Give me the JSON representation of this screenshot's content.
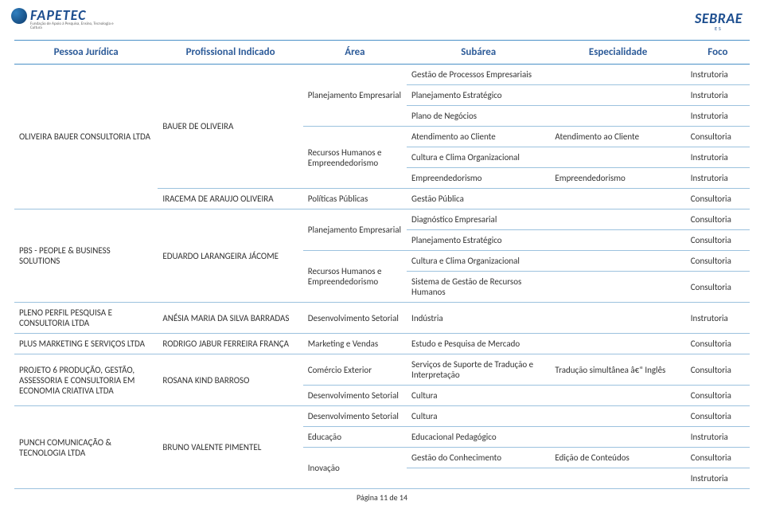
{
  "logos": {
    "left": {
      "name": "FAPETEC",
      "tagline": "Fundação de Apoio à Pesquisa, Ensino, Tecnologia e Cultura"
    },
    "right": {
      "name": "SEBRAE",
      "sub": "ES"
    }
  },
  "headers": [
    "Pessoa Jurídica",
    "Profissional Indicado",
    "Área",
    "Subárea",
    "Especialidade",
    "Foco"
  ],
  "rows": [
    {
      "c1": "OLIVEIRA BAUER CONSULTORIA LTDA",
      "c1rs": 1,
      "c2": "BAUER DE OLIVEIRA",
      "c2rs": 1,
      "c3": "Planejamento Empresarial",
      "c4": "Gestão de Processos Empresariais",
      "c5": "",
      "c6": "Instrutoria"
    },
    {
      "c4": "Planejamento Estratégico",
      "c5": "",
      "c6": "Instrutoria"
    },
    {
      "c4": "Plano de Negócios",
      "c5": "",
      "c6": "Instrutoria"
    },
    {
      "c3": "Recursos Humanos e Empreendedorismo",
      "c4": "Atendimento ao Cliente",
      "c5": "Atendimento ao Cliente",
      "c6": "Consultoria"
    },
    {
      "c4": "Cultura e Clima Organizacional",
      "c5": "",
      "c6": "Instrutoria"
    },
    {
      "c4": "Empreendedorismo",
      "c5": "Empreendedorismo",
      "c6": "Instrutoria"
    },
    {
      "c2": "IRACEMA DE ARAUJO OLIVEIRA",
      "c3": "Políticas Públicas",
      "c4": "Gestão Pública",
      "c5": "",
      "c6": "Consultoria"
    },
    {
      "c1": "PBS - PEOPLE & BUSINESS SOLUTIONS",
      "c1rs": 1,
      "c2": "EDUARDO LARANGEIRA JÁCOME",
      "c2rs": 1,
      "c3": "Planejamento Empresarial",
      "c4": "Diagnóstico Empresarial",
      "c5": "",
      "c6": "Consultoria"
    },
    {
      "c4": "Planejamento Estratégico",
      "c5": "",
      "c6": "Consultoria"
    },
    {
      "c3": "Recursos Humanos e Empreendedorismo",
      "c4": "Cultura e Clima Organizacional",
      "c5": "",
      "c6": "Consultoria"
    },
    {
      "c4": "Sistema de Gestão de Recursos Humanos",
      "c5": "",
      "c6": "Consultoria"
    },
    {
      "c1": "PLENO PERFIL PESQUISA E CONSULTORIA LTDA",
      "c2": "ANÉSIA MARIA DA SILVA BARRADAS",
      "c3": "Desenvolvimento Setorial",
      "c4": "Indústria",
      "c5": "",
      "c6": "Instrutoria"
    },
    {
      "c1": "PLUS MARKETING E SERVIÇOS LTDA",
      "c2": "RODRIGO JABUR FERREIRA FRANÇA",
      "c3": "Marketing e Vendas",
      "c4": "Estudo e Pesquisa de Mercado",
      "c5": "",
      "c6": "Consultoria"
    },
    {
      "c1": "PROJETO 6 PRODUÇÃO, GESTÃO, ASSESSORIA E CONSULTORIA EM ECONOMIA CRIATIVA LTDA",
      "c1rs": 1,
      "c2": "ROSANA KIND BARROSO",
      "c2rs": 1,
      "c3": "Comércio Exterior",
      "c4": "Serviços de Suporte de Tradução e Interpretação",
      "c5": "Tradução simultânea â€“ Inglês",
      "c6": "Consultoria"
    },
    {
      "c3": "Desenvolvimento Setorial",
      "c4": "Cultura",
      "c5": "",
      "c6": "Consultoria"
    },
    {
      "c1": "PUNCH COMUNICAÇÃO & TECNOLOGIA LTDA",
      "c1rs": 1,
      "c2": "BRUNO VALENTE PIMENTEL",
      "c2rs": 1,
      "c3": "Desenvolvimento Setorial",
      "c4": "Cultura",
      "c5": "",
      "c6": "Consultoria"
    },
    {
      "c3": "Educação",
      "c4": "Educacional Pedagógico",
      "c5": "",
      "c6": "Instrutoria"
    },
    {
      "c3": "Inovação",
      "c4": "Gestão do Conhecimento",
      "c5": "Edição de Conteúdos",
      "c6": "Consultoria"
    },
    {
      "c4": "",
      "c5": "",
      "c6": "Instrutoria"
    }
  ],
  "spans": {
    "c1": [
      {
        "start": 0,
        "len": 7
      },
      {
        "start": 7,
        "len": 4
      },
      {
        "start": 11,
        "len": 1
      },
      {
        "start": 12,
        "len": 1
      },
      {
        "start": 13,
        "len": 2
      },
      {
        "start": 15,
        "len": 4
      }
    ],
    "c2": [
      {
        "start": 0,
        "len": 6
      },
      {
        "start": 6,
        "len": 1
      },
      {
        "start": 7,
        "len": 4
      },
      {
        "start": 11,
        "len": 1
      },
      {
        "start": 12,
        "len": 1
      },
      {
        "start": 13,
        "len": 2
      },
      {
        "start": 15,
        "len": 4
      }
    ],
    "c3": [
      {
        "start": 0,
        "len": 3
      },
      {
        "start": 3,
        "len": 3
      },
      {
        "start": 6,
        "len": 1
      },
      {
        "start": 7,
        "len": 2
      },
      {
        "start": 9,
        "len": 2
      },
      {
        "start": 11,
        "len": 1
      },
      {
        "start": 12,
        "len": 1
      },
      {
        "start": 13,
        "len": 1
      },
      {
        "start": 14,
        "len": 1
      },
      {
        "start": 15,
        "len": 1
      },
      {
        "start": 16,
        "len": 1
      },
      {
        "start": 17,
        "len": 2
      }
    ]
  },
  "footer": "Página 11 de 14",
  "colors": {
    "header_text": "#2e5c99",
    "header_border": "#4a90c7",
    "cell_border": "#9cc2de"
  }
}
